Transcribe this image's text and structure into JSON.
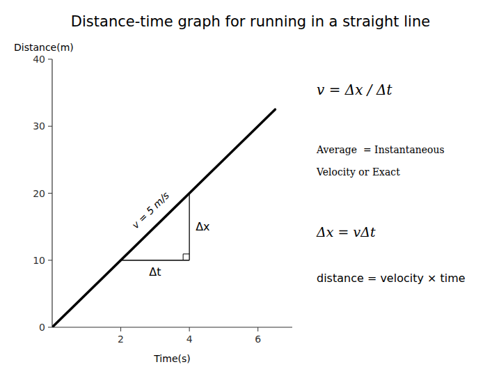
{
  "chart_data": {
    "type": "line",
    "title": "Distance-time graph for running in a straight line",
    "xlabel": "Time(s)",
    "ylabel": "Distance(m)",
    "x": [
      0,
      6.5
    ],
    "values": [
      0,
      32.5
    ],
    "color": "black",
    "xlim": [
      0,
      7
    ],
    "ylim": [
      0,
      40
    ],
    "xticks": [
      2,
      4,
      6
    ],
    "yticks": [
      0,
      10,
      20,
      30,
      40
    ],
    "annotations": [
      {
        "text": "v = 5 m/s",
        "x": 3.05,
        "y": 16.5
      },
      {
        "text": "Δx",
        "x": [
          4,
          4
        ],
        "y": [
          10,
          20
        ]
      },
      {
        "text": "Δt",
        "x": [
          2,
          4
        ],
        "y": [
          10,
          10
        ]
      },
      {
        "text": "v = Δx / Δt"
      },
      {
        "text": "Average  = Instantaneous"
      },
      {
        "text": "Velocity or Exact"
      },
      {
        "text": "Δx = vΔt"
      },
      {
        "text": "distance = velocity × time"
      }
    ]
  }
}
